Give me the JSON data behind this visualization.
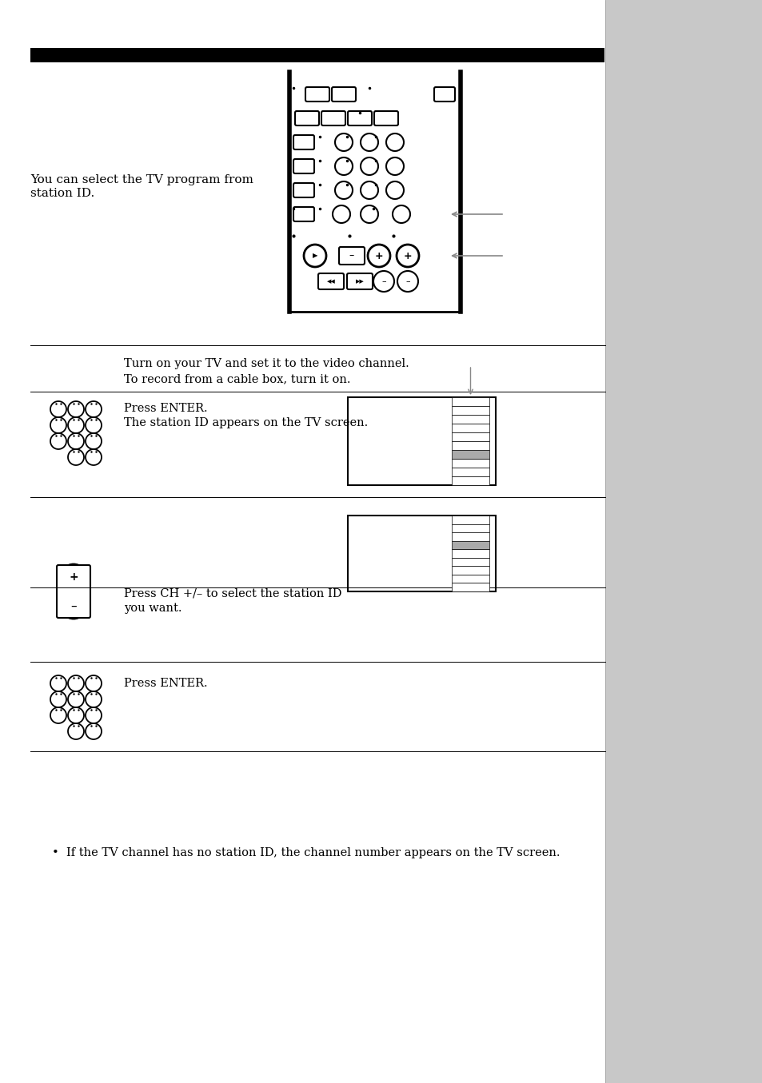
{
  "bg_color": "#ffffff",
  "page_width": 9.54,
  "page_height": 13.55,
  "intro_text_line1": "You can select the TV program from",
  "intro_text_line2": "station ID.",
  "step1_line1": "Turn on your TV and set it to the video channel.",
  "step1_line2": "To record from a cable box, turn it on.",
  "step2_line1": "Press ENTER.",
  "step2_line2": "The station ID appears on the TV screen.",
  "step3_line1": "Press CH +/– to select the station ID",
  "step3_line2": "you want.",
  "step4_line1": "Press ENTER.",
  "note_text": "•  If the TV channel has no station ID, the channel number appears on the TV screen.",
  "right_margin_color": "#c8c8c8"
}
